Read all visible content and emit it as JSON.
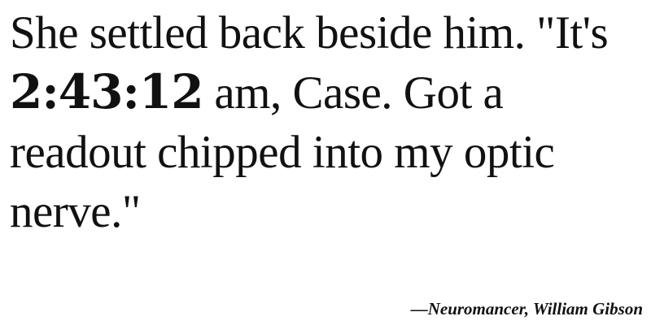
{
  "quote": {
    "before": "She settled back beside him. \"It's ",
    "time": "2:43:12",
    "after": " am, Case. Got a readout chipped into my optic nerve.\""
  },
  "attribution": {
    "text": "—Neuromancer, William Gibson"
  }
}
